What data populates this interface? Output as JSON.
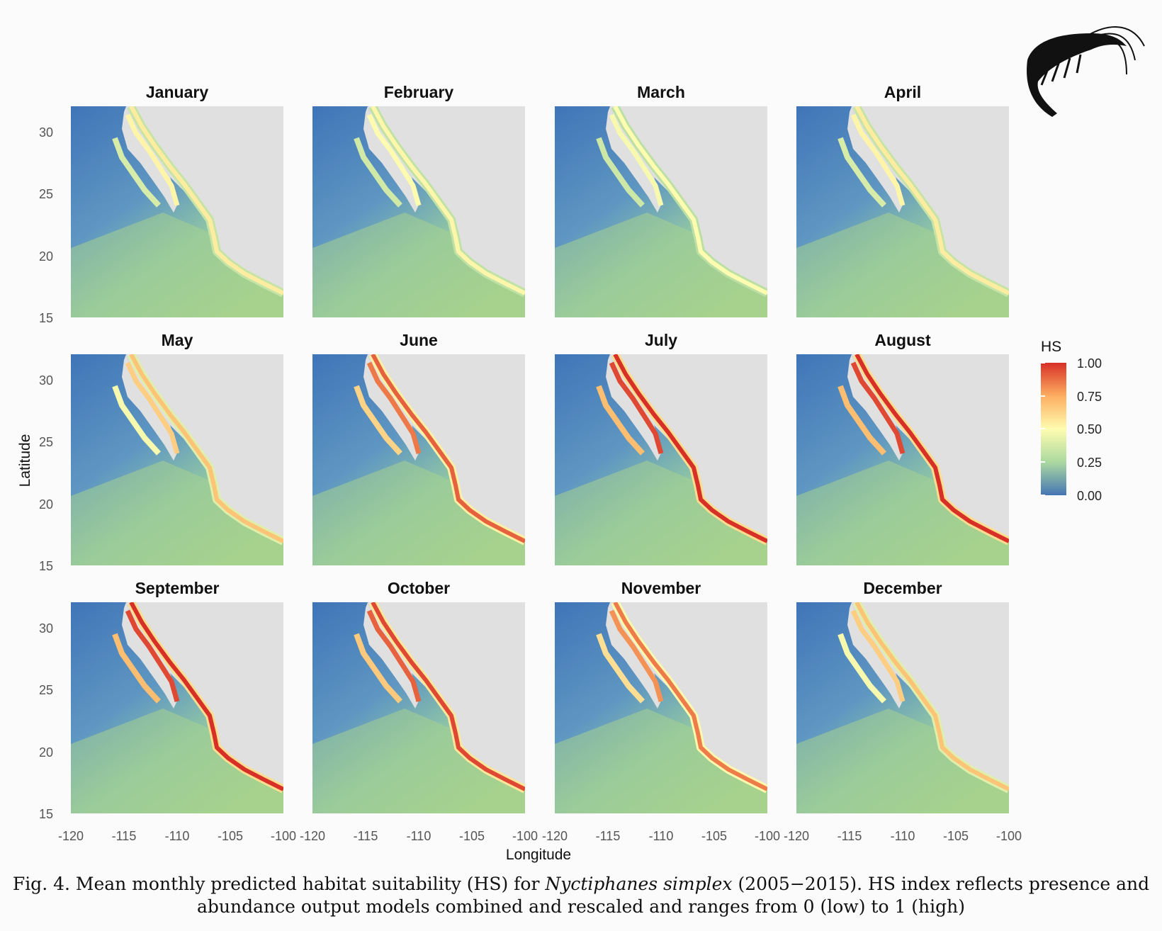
{
  "figure": {
    "months": [
      "January",
      "February",
      "March",
      "April",
      "May",
      "June",
      "July",
      "August",
      "September",
      "October",
      "November",
      "December"
    ],
    "y_ticks": [
      "30",
      "25",
      "20",
      "15"
    ],
    "x_ticks": [
      "-120",
      "-115",
      "-110",
      "-105",
      "-100"
    ],
    "y_label": "Latitude",
    "x_label": "Longitude",
    "legend_title": "HS",
    "legend_ticks": [
      "1.00",
      "0.75",
      "0.50",
      "0.25",
      "0.00"
    ],
    "peak_hs": [
      0.55,
      0.52,
      0.5,
      0.55,
      0.68,
      0.9,
      1.0,
      1.0,
      1.0,
      0.95,
      0.85,
      0.68
    ],
    "colors": {
      "low": "#4a7fbf",
      "mid": "#f7f3a6",
      "high": "#d73027",
      "land": "#e0e0e0"
    }
  },
  "caption": {
    "prefix": "Fig. 4. Mean monthly predicted habitat suitability (HS) for ",
    "species": "Nyctiphanes simplex",
    "suffix": " (2005−2015). HS index reflects presence and",
    "line2": "abundance output models combined and rescaled and ranges from 0 (low) to 1 (high)"
  }
}
